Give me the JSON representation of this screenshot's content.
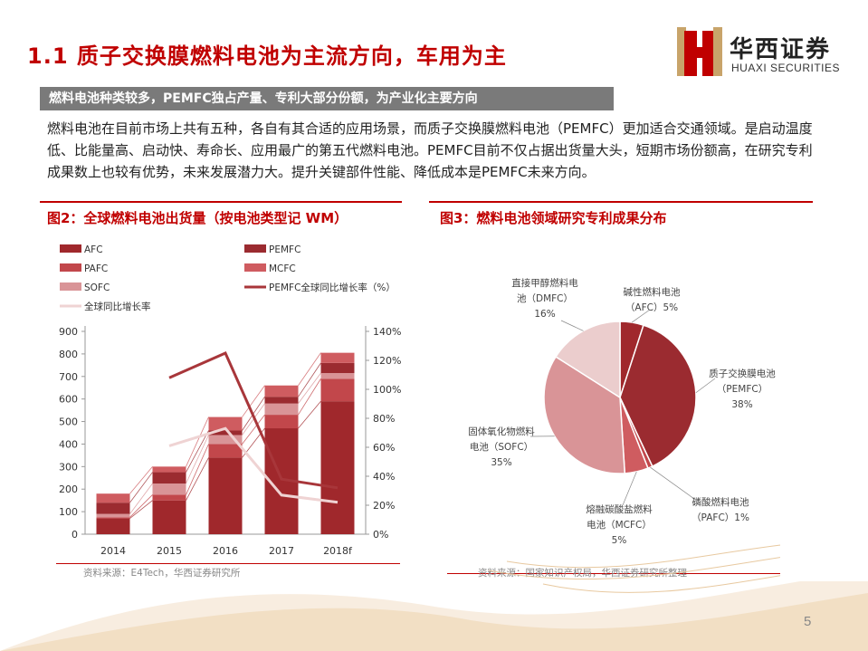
{
  "header": {
    "title": "1.1 质子交换膜燃料电池为主流方向，车用为主",
    "logo_cn": "华西证券",
    "logo_en": "HUAXI SECURITIES"
  },
  "banner": "燃料电池种类较多，PEMFC独占产量、专利大部分份额，为产业化主要方向",
  "paragraph": "燃料电池在目前市场上共有五种，各自有其合适的应用场景，而质子交换膜燃料电池（PEMFC）更加适合交通领域。是启动温度低、比能量高、启动快、寿命长、应用最广的第五代燃料电池。PEMFC目前不仅占据出货量大头，短期市场份额高，在研究专利成果数上也较有优势，未来发展潜力大。提升关键部件性能、降低成本是PEMFC未来方向。",
  "figures": {
    "fig2_title": "图2：全球燃料电池出货量（按电池类型记 WM）",
    "fig2_source": "资料来源：E4Tech，华西证券研究所",
    "fig3_title": "图3：燃料电池领域研究专利成果分布",
    "fig3_source": "资料来源：国家知识产权局，华西证券研究所整理"
  },
  "page_number": "5",
  "colors": {
    "accent": "#c00000",
    "afc": "#a0282c",
    "pemfc": "#9b2b30",
    "pafc": "#c2474b",
    "mcfc": "#cf5c60",
    "sofc": "#d99497",
    "dmfc": "#ebcdcd",
    "growth_pemfc": "#a8363a",
    "growth_total": "#efd3d3"
  },
  "chart_data": [
    {
      "type": "bar",
      "stacked": true,
      "categories": [
        "2014",
        "2015",
        "2016",
        "2017",
        "2018f"
      ],
      "series": [
        {
          "name": "AFC",
          "values": [
            70,
            150,
            340,
            470,
            590
          ]
        },
        {
          "name": "PAFC",
          "values": [
            5,
            25,
            60,
            60,
            100
          ]
        },
        {
          "name": "SOFC",
          "values": [
            15,
            50,
            40,
            50,
            25
          ]
        },
        {
          "name": "PEMFC",
          "values": [
            50,
            50,
            20,
            30,
            45
          ]
        },
        {
          "name": "MCFC",
          "values": [
            40,
            25,
            60,
            50,
            45
          ]
        }
      ],
      "lines": [
        {
          "name": "PEMFC全球同比增长率（%）",
          "axis": "right",
          "values": [
            null,
            108,
            125,
            38,
            32
          ]
        },
        {
          "name": "全球同比增长率",
          "axis": "right",
          "values": [
            null,
            61,
            73,
            27,
            22
          ]
        }
      ],
      "ylim": [
        0,
        900
      ],
      "yticks": [
        0,
        100,
        200,
        300,
        400,
        500,
        600,
        700,
        800,
        900
      ],
      "y2lim": [
        0,
        140
      ],
      "y2ticks": [
        "0%",
        "20%",
        "40%",
        "60%",
        "80%",
        "100%",
        "120%",
        "140%"
      ],
      "legend": "top",
      "grid": false
    },
    {
      "type": "pie",
      "slices": [
        {
          "label": "碱性燃料电池",
          "label2": "（AFC）5%",
          "value": 5
        },
        {
          "label": "质子交换膜电池",
          "label2": "（PEMFC）",
          "label3": "38%",
          "value": 38
        },
        {
          "label": "磷酸燃料电池",
          "label2": "（PAFC）1%",
          "value": 1
        },
        {
          "label": "熔融碳酸盐燃料",
          "label2": "电池（MCFC）",
          "label3": "5%",
          "value": 5
        },
        {
          "label": "固体氧化物燃料",
          "label2": "电池（SOFC）",
          "label3": "35%",
          "value": 35
        },
        {
          "label": "直接甲醇燃料电",
          "label2": "池（DMFC）",
          "label3": "16%",
          "value": 16
        }
      ]
    }
  ]
}
